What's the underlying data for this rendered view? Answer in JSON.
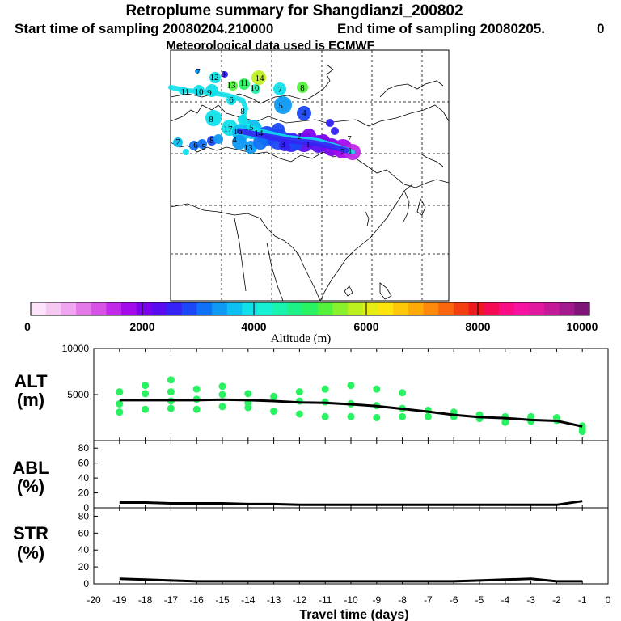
{
  "header": {
    "title": "Retroplume summary for Shangdianzi_200802",
    "start_label": "Start time of sampling 20080204.210000",
    "end_label": "End time of sampling 20080205.",
    "end_suffix": "0",
    "met_label": "Meteorological data used is ECMWF"
  },
  "colorbar": {
    "label": "Altitude (m)",
    "tick_labels": [
      "0",
      "2000",
      "4000",
      "6000",
      "8000",
      "10000"
    ],
    "colors": [
      "#fde4fb",
      "#f6c9f4",
      "#efa5ef",
      "#e47ae8",
      "#d653e6",
      "#c02ae8",
      "#a30bea",
      "#7b04ec",
      "#5a0cf0",
      "#3522f4",
      "#1b48f6",
      "#0f71f7",
      "#0d99f4",
      "#0cc0f1",
      "#0fe0ea",
      "#17f1d3",
      "#1af3ad",
      "#1ef287",
      "#29f260",
      "#55f23c",
      "#8af22c",
      "#bdf01f",
      "#e6ed14",
      "#fde40c",
      "#fec80a",
      "#feaa09",
      "#fd8a0a",
      "#f9660d",
      "#f43f13",
      "#ee1a1f",
      "#f40b54",
      "#f90c84",
      "#f712a0",
      "#e0199f",
      "#c31b98",
      "#a21a8d",
      "#7e1677"
    ]
  },
  "map": {
    "labels": [
      {
        "text": "7",
        "c": "#0d99f4"
      },
      {
        "text": "12",
        "c": "#0fe0ea"
      },
      {
        "text": "8",
        "c": "#3522f4"
      },
      {
        "text": "14",
        "c": "#bdf01f"
      },
      {
        "text": "13",
        "c": "#55f23c"
      },
      {
        "text": "11",
        "c": "#29f260"
      },
      {
        "text": "10",
        "c": "#1af3ad"
      },
      {
        "text": "7",
        "c": "#0fe0ea"
      },
      {
        "text": "8",
        "c": "#55f23c"
      },
      {
        "text": "11",
        "c": "#0fe0ea"
      },
      {
        "text": "10",
        "c": "#0fe0ea"
      },
      {
        "text": "9",
        "c": "#0fe0ea"
      },
      {
        "text": "6",
        "c": "#0d99f4"
      },
      {
        "text": "5",
        "c": "#0d99f4"
      },
      {
        "text": "4",
        "c": "#1b48f6"
      },
      {
        "text": "8",
        "c": "#0fe0ea"
      },
      {
        "text": "17",
        "c": "#0fe0ea"
      },
      {
        "text": "16",
        "c": "#0fe0ea"
      },
      {
        "text": "15",
        "c": "#0cc0f1"
      },
      {
        "text": "14",
        "c": "#0cc0f1"
      },
      {
        "text": "13",
        "c": "#0d99f4"
      },
      {
        "text": "4",
        "c": "#0cc0f1"
      },
      {
        "text": "3",
        "c": "#1b48f6"
      },
      {
        "text": "2",
        "c": "#3522f4"
      },
      {
        "text": "1",
        "c": "#7b04ec"
      },
      {
        "text": "7",
        "c": "#0cc0f1"
      },
      {
        "text": "6",
        "c": "#0f71f7"
      },
      {
        "text": "5",
        "c": "#0f71f7"
      },
      {
        "text": "8",
        "c": "#1b48f6"
      },
      {
        "text": "7",
        "c": "#0cc0f1"
      },
      {
        "text": "2",
        "c": "#a30bea"
      },
      {
        "text": "1",
        "c": "#c02ae8"
      }
    ]
  },
  "chart_data": [
    {
      "type": "scatter",
      "panel": "ALT",
      "ylabel": "ALT (m)",
      "ylim": [
        0,
        10000
      ],
      "yticks": [
        10000,
        5000
      ],
      "xlim": [
        -20,
        0
      ],
      "x": [
        -19,
        -18,
        -17,
        -16,
        -15,
        -14,
        -13,
        -12,
        -11,
        -10,
        -9,
        -8,
        -7,
        -6,
        -5,
        -4,
        -3,
        -2,
        -1
      ],
      "median_line": [
        4400,
        4400,
        4400,
        4400,
        4450,
        4400,
        4300,
        4150,
        4100,
        3950,
        3750,
        3450,
        3150,
        2800,
        2550,
        2450,
        2250,
        2150,
        1550
      ],
      "points": [
        [
          -19,
          5300
        ],
        [
          -19,
          4000
        ],
        [
          -19,
          3100
        ],
        [
          -18,
          6000
        ],
        [
          -18,
          5100
        ],
        [
          -18,
          3400
        ],
        [
          -17,
          6600
        ],
        [
          -17,
          5300
        ],
        [
          -17,
          4300
        ],
        [
          -17,
          3500
        ],
        [
          -16,
          5600
        ],
        [
          -16,
          4500
        ],
        [
          -16,
          3400
        ],
        [
          -15,
          5900
        ],
        [
          -15,
          5000
        ],
        [
          -15,
          3700
        ],
        [
          -14,
          5100
        ],
        [
          -14,
          4100
        ],
        [
          -14,
          3600
        ],
        [
          -13,
          4800
        ],
        [
          -13,
          3200
        ],
        [
          -12,
          5300
        ],
        [
          -12,
          4300
        ],
        [
          -12,
          2900
        ],
        [
          -11,
          5600
        ],
        [
          -11,
          4200
        ],
        [
          -11,
          2600
        ],
        [
          -10,
          6000
        ],
        [
          -10,
          4000
        ],
        [
          -10,
          2600
        ],
        [
          -9,
          5600
        ],
        [
          -9,
          3800
        ],
        [
          -9,
          2500
        ],
        [
          -8,
          5200
        ],
        [
          -8,
          3500
        ],
        [
          -8,
          2600
        ],
        [
          -7,
          3300
        ],
        [
          -7,
          2600
        ],
        [
          -6,
          3100
        ],
        [
          -6,
          2600
        ],
        [
          -5,
          2800
        ],
        [
          -5,
          2400
        ],
        [
          -4,
          2600
        ],
        [
          -4,
          2000
        ],
        [
          -3,
          2600
        ],
        [
          -3,
          2100
        ],
        [
          -2,
          2500
        ],
        [
          -2,
          2200
        ],
        [
          -1,
          1600
        ],
        [
          -1,
          1300
        ],
        [
          -1,
          1000
        ]
      ]
    },
    {
      "type": "line",
      "panel": "ABL",
      "ylabel": "ABL (%)",
      "ylim": [
        0,
        90
      ],
      "yticks": [
        80,
        60,
        40,
        20,
        0
      ],
      "xlim": [
        -20,
        0
      ],
      "x": [
        -19,
        -18,
        -17,
        -16,
        -15,
        -14,
        -13,
        -12,
        -11,
        -10,
        -9,
        -8,
        -7,
        -6,
        -5,
        -4,
        -3,
        -2,
        -1
      ],
      "values": [
        7,
        7,
        6,
        6,
        6,
        5,
        5,
        4,
        4,
        4,
        4,
        4,
        4,
        4,
        4,
        4,
        4,
        4,
        9
      ]
    },
    {
      "type": "line",
      "panel": "STR",
      "ylabel": "STR (%)",
      "ylim": [
        0,
        90
      ],
      "yticks": [
        80,
        60,
        40,
        20,
        0
      ],
      "xlim": [
        -20,
        0
      ],
      "xticks": [
        -20,
        -19,
        -18,
        -17,
        -16,
        -15,
        -14,
        -13,
        -12,
        -11,
        -10,
        -9,
        -8,
        -7,
        -6,
        -5,
        -4,
        -3,
        -2,
        -1,
        0
      ],
      "xlabel": "Travel time (days)",
      "x": [
        -19,
        -18,
        -17,
        -16,
        -15,
        -14,
        -13,
        -12,
        -11,
        -10,
        -9,
        -8,
        -7,
        -6,
        -5,
        -4,
        -3,
        -2,
        -1
      ],
      "values": [
        6,
        5,
        4,
        3,
        3,
        3,
        3,
        3,
        3,
        3,
        3,
        3,
        3,
        3,
        4,
        5,
        6,
        3,
        3
      ]
    }
  ],
  "panel_titles": {
    "alt": [
      "ALT",
      "(m)"
    ],
    "abl": [
      "ABL",
      "(%)"
    ],
    "str": [
      "STR",
      "(%)"
    ]
  }
}
